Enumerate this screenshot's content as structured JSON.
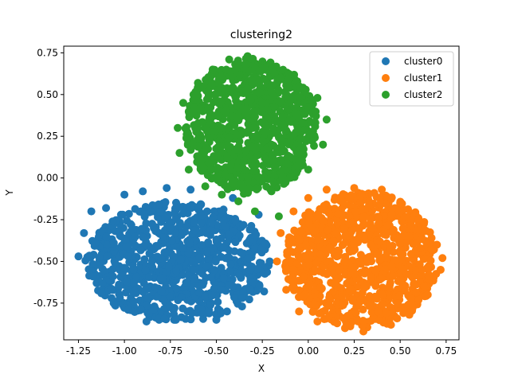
{
  "chart_data": {
    "type": "scatter",
    "title": "clustering2",
    "xlabel": "X",
    "ylabel": "Y",
    "xlim": [
      -1.33,
      0.82
    ],
    "ylim": [
      -0.97,
      0.79
    ],
    "xticks": [
      "-1.25",
      "-1.00",
      "-0.75",
      "-0.50",
      "-0.25",
      "0.00",
      "0.25",
      "0.50",
      "0.75"
    ],
    "xtick_values": [
      -1.25,
      -1.0,
      -0.75,
      -0.5,
      -0.25,
      0.0,
      0.25,
      0.5,
      0.75
    ],
    "yticks": [
      "-0.75",
      "-0.50",
      "-0.25",
      "0.00",
      "0.25",
      "0.50",
      "0.75"
    ],
    "ytick_values": [
      -0.75,
      -0.5,
      -0.25,
      0.0,
      0.25,
      0.5,
      0.75
    ],
    "grid": false,
    "legend_position": "top-right",
    "series": [
      {
        "name": "cluster0",
        "color": "#1f77b4",
        "center": [
          -0.71,
          -0.5
        ],
        "radius_x": 0.52,
        "radius_y": 0.37,
        "points": [
          [
            -1.25,
            -0.47
          ],
          [
            -1.22,
            -0.33
          ],
          [
            -1.18,
            -0.2
          ],
          [
            -1.12,
            -0.63
          ],
          [
            -1.1,
            -0.18
          ],
          [
            -1.07,
            -0.72
          ],
          [
            -1.02,
            -0.35
          ],
          [
            -1.0,
            -0.1
          ],
          [
            -0.98,
            -0.79
          ],
          [
            -0.95,
            -0.55
          ],
          [
            -0.9,
            -0.08
          ],
          [
            -0.88,
            -0.86
          ],
          [
            -0.84,
            -0.3
          ],
          [
            -0.8,
            -0.68
          ],
          [
            -0.77,
            -0.06
          ],
          [
            -0.72,
            -0.85
          ],
          [
            -0.68,
            -0.42
          ],
          [
            -0.64,
            -0.07
          ],
          [
            -0.6,
            -0.78
          ],
          [
            -0.55,
            -0.2
          ],
          [
            -0.5,
            -0.85
          ],
          [
            -0.46,
            -0.6
          ],
          [
            -0.41,
            -0.12
          ],
          [
            -0.36,
            -0.77
          ],
          [
            -0.32,
            -0.38
          ],
          [
            -0.27,
            -0.22
          ],
          [
            -0.24,
            -0.68
          ],
          [
            -0.21,
            -0.5
          ],
          [
            -0.85,
            -0.5
          ],
          [
            -0.62,
            -0.55
          ],
          [
            -0.75,
            -0.3
          ],
          [
            -0.55,
            -0.45
          ]
        ]
      },
      {
        "name": "cluster1",
        "color": "#ff7f0e",
        "center": [
          0.29,
          -0.49
        ],
        "radius_x": 0.43,
        "radius_y": 0.42,
        "points": [
          [
            -0.17,
            -0.5
          ],
          [
            -0.15,
            -0.33
          ],
          [
            -0.12,
            -0.67
          ],
          [
            -0.08,
            -0.2
          ],
          [
            -0.05,
            -0.8
          ],
          [
            0.0,
            -0.12
          ],
          [
            0.05,
            -0.86
          ],
          [
            0.1,
            -0.07
          ],
          [
            0.15,
            -0.62
          ],
          [
            0.2,
            -0.9
          ],
          [
            0.25,
            -0.06
          ],
          [
            0.3,
            -0.92
          ],
          [
            0.35,
            -0.3
          ],
          [
            0.4,
            -0.07
          ],
          [
            0.45,
            -0.88
          ],
          [
            0.5,
            -0.15
          ],
          [
            0.55,
            -0.82
          ],
          [
            0.6,
            -0.25
          ],
          [
            0.65,
            -0.7
          ],
          [
            0.7,
            -0.4
          ],
          [
            0.72,
            -0.55
          ],
          [
            0.73,
            -0.48
          ],
          [
            0.28,
            -0.5
          ],
          [
            0.2,
            -0.35
          ],
          [
            0.4,
            -0.6
          ],
          [
            0.1,
            -0.5
          ],
          [
            0.5,
            -0.45
          ]
        ]
      },
      {
        "name": "cluster2",
        "color": "#2ca02c",
        "center": [
          -0.31,
          0.31
        ],
        "radius_x": 0.37,
        "radius_y": 0.42,
        "points": [
          [
            -0.71,
            0.3
          ],
          [
            -0.7,
            0.15
          ],
          [
            -0.68,
            0.45
          ],
          [
            -0.65,
            0.05
          ],
          [
            -0.6,
            0.57
          ],
          [
            -0.56,
            -0.05
          ],
          [
            -0.52,
            0.65
          ],
          [
            -0.47,
            -0.1
          ],
          [
            -0.43,
            0.71
          ],
          [
            -0.38,
            -0.14
          ],
          [
            -0.33,
            0.73
          ],
          [
            -0.29,
            -0.2
          ],
          [
            -0.24,
            0.66
          ],
          [
            -0.2,
            -0.08
          ],
          [
            -0.15,
            0.6
          ],
          [
            -0.1,
            0.0
          ],
          [
            -0.05,
            0.55
          ],
          [
            0.0,
            0.05
          ],
          [
            0.05,
            0.48
          ],
          [
            0.08,
            0.2
          ],
          [
            0.1,
            0.35
          ],
          [
            -0.3,
            0.3
          ],
          [
            -0.45,
            0.4
          ],
          [
            -0.2,
            0.2
          ],
          [
            -0.35,
            0.1
          ],
          [
            -0.25,
            0.45
          ],
          [
            -0.16,
            -0.23
          ]
        ]
      }
    ]
  }
}
